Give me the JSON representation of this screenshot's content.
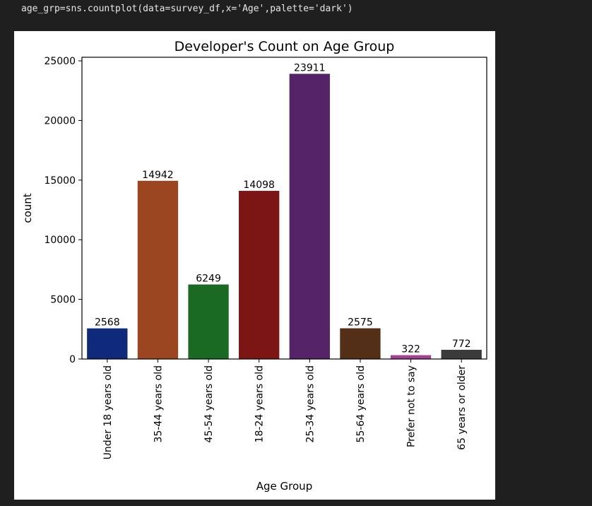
{
  "code": {
    "line": "age_grp=sns.countplot(data=survey_df,x='Age',palette='dark')"
  },
  "chart_data": {
    "type": "bar",
    "title": "Developer's Count on Age Group",
    "xlabel": "Age Group",
    "ylabel": "count",
    "ylim": [
      0,
      25300
    ],
    "yticks": [
      0,
      5000,
      10000,
      15000,
      20000,
      25000
    ],
    "categories": [
      "Under 18 years old",
      "35-44 years old",
      "45-54 years old",
      "18-24 years old",
      "25-34 years old",
      "55-64 years old",
      "Prefer not to say",
      "65 years or older"
    ],
    "values": [
      2568,
      14942,
      6249,
      14098,
      23911,
      2575,
      322,
      772
    ],
    "colors": [
      "#0f2a7a",
      "#9b4521",
      "#1b6a24",
      "#7c1614",
      "#552468",
      "#542f18",
      "#a34096",
      "#3b3b3b"
    ],
    "grid": false,
    "legend": "none"
  }
}
